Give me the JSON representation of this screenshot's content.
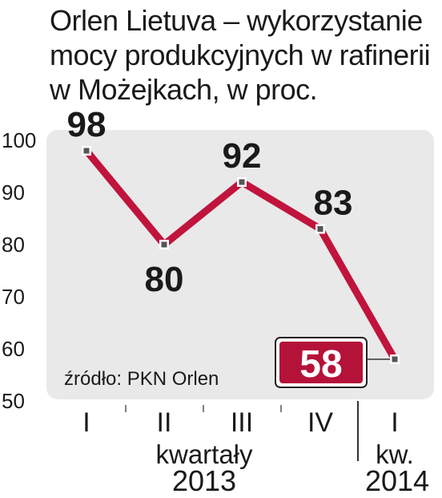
{
  "chart_data": {
    "type": "line",
    "title_lines": [
      "Orlen Lietuva – wykorzystanie",
      "mocy produkcyjnych w rafinerii",
      "w Możejkach, w proc."
    ],
    "categories": [
      "I",
      "II",
      "III",
      "IV",
      "I"
    ],
    "values": [
      98,
      80,
      92,
      83,
      58
    ],
    "value_labels": [
      "98",
      "80",
      "92",
      "83",
      "58"
    ],
    "highlight_index": 4,
    "group_label": "kwartały",
    "years": [
      "2013",
      "2014"
    ],
    "year_prefix": "kw.",
    "y_ticks": [
      100,
      90,
      80,
      70,
      60,
      50
    ],
    "ylim": [
      50,
      100
    ],
    "source": "źródło: PKN Orlen",
    "grid": false,
    "colors": {
      "line": "#c0143c",
      "panel": "#e9e9e9",
      "highlight_bg": "#b5123a",
      "marker": "#555555"
    }
  }
}
